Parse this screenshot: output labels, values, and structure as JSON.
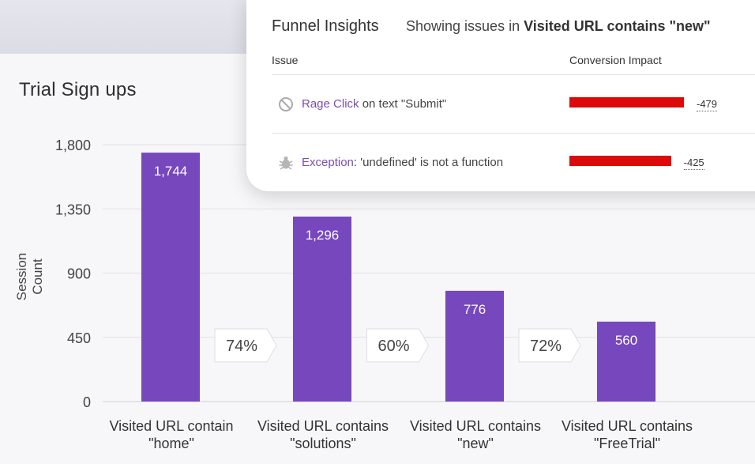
{
  "chart_data": {
    "type": "bar",
    "title": "Trial Sign ups",
    "ylabel": "Session Count",
    "xlabel": "",
    "ylim": [
      0,
      1800
    ],
    "yticks": [
      0,
      450,
      900,
      1350,
      1800
    ],
    "ytick_labels": [
      "0",
      "450",
      "900",
      "1,350",
      "1,800"
    ],
    "grid": true,
    "categories": [
      [
        "Visited URL contain",
        "\"home\""
      ],
      [
        "Visited URL contains",
        "\"solutions\""
      ],
      [
        "Visited URL contains",
        "\"new\""
      ],
      [
        "Visited URL contains",
        "\"FreeTrial\""
      ]
    ],
    "values": [
      1744,
      1296,
      776,
      560
    ],
    "value_labels": [
      "1,744",
      "1,296",
      "776",
      "560"
    ],
    "conversion_labels": [
      "74%",
      "60%",
      "72%"
    ],
    "bar_color": "#7747bd"
  },
  "insights": {
    "title": "Funnel Insights",
    "subtitle_prefix": "Showing issues in ",
    "subtitle_bold": "Visited URL contains \"new\"",
    "col_issue": "Issue",
    "col_impact": "Conversion Impact",
    "bar_color": "#dc0a0a",
    "rows": [
      {
        "icon": "prohibited-icon",
        "link": "Rage Click",
        "text": " on text \"Submit\"",
        "impact": -479,
        "impact_label": "-479"
      },
      {
        "icon": "bug-icon",
        "link": "Exception",
        "text": ": 'undefined' is not a function",
        "impact": -425,
        "impact_label": "-425"
      }
    ]
  }
}
